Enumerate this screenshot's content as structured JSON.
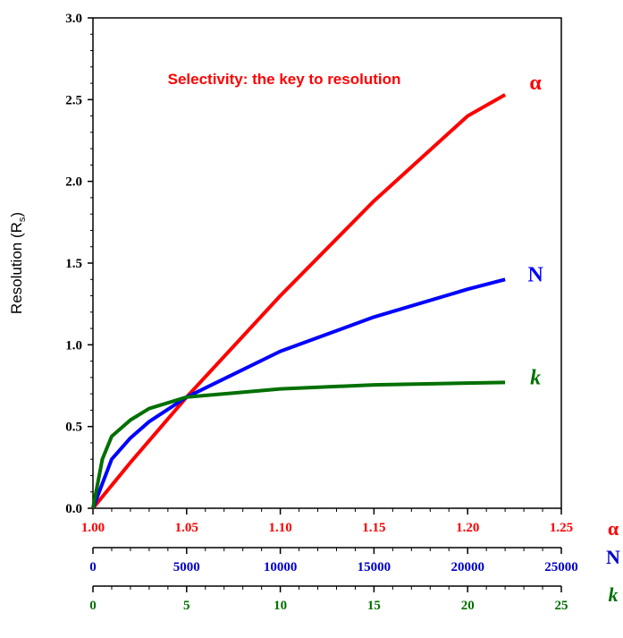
{
  "chart_data": {
    "type": "line",
    "title": "Selectivity: the key to resolution",
    "title_color": "#ff0000",
    "ylabel": {
      "text": "Resolution (R",
      "subscript": "s",
      "suffix": ")"
    },
    "ylim": [
      0,
      3
    ],
    "yticks": [
      {
        "value": 0,
        "label": "0.0"
      },
      0.5,
      {
        "value": 1,
        "label": "1.0"
      },
      1.5,
      {
        "value": 2,
        "label": "2.0"
      },
      2.5,
      {
        "value": 3,
        "label": "3.0"
      }
    ],
    "xaxes": [
      {
        "label": "α",
        "color": "#ff0000",
        "xlim": [
          1.0,
          1.25
        ],
        "xticks": [
          {
            "value": 1.0,
            "label": "1.00"
          },
          1.05,
          {
            "value": 1.1,
            "label": "1.10"
          },
          1.15,
          {
            "value": 1.2,
            "label": "1.20"
          },
          1.25
        ]
      },
      {
        "label": "N",
        "color": "#0000cc",
        "xlim": [
          0,
          25000
        ],
        "xticks": [
          0,
          5000,
          10000,
          15000,
          20000,
          25000
        ]
      },
      {
        "label": "k",
        "color": "#007000",
        "xlim": [
          0,
          25
        ],
        "xticks": [
          0,
          5,
          10,
          15,
          20,
          25
        ]
      }
    ],
    "series": [
      {
        "name": "α",
        "color": "#ff0000",
        "xaxis": 0,
        "x": [
          1.0,
          1.02,
          1.05,
          1.1,
          1.15,
          1.2,
          1.22
        ],
        "values": [
          0,
          0.28,
          0.68,
          1.3,
          1.88,
          2.4,
          2.53
        ]
      },
      {
        "name": "N",
        "color": "#0000ff",
        "xaxis": 1,
        "x": [
          0,
          1000,
          2000,
          3000,
          5000,
          10000,
          15000,
          20000,
          22000
        ],
        "values": [
          0,
          0.3,
          0.43,
          0.53,
          0.68,
          0.96,
          1.17,
          1.34,
          1.4
        ]
      },
      {
        "name": "k",
        "color": "#007000",
        "xaxis": 2,
        "x": [
          0,
          0.5,
          1,
          2,
          3,
          5,
          10,
          15,
          22
        ],
        "values": [
          0,
          0.3,
          0.44,
          0.54,
          0.61,
          0.68,
          0.73,
          0.755,
          0.77
        ]
      }
    ]
  }
}
